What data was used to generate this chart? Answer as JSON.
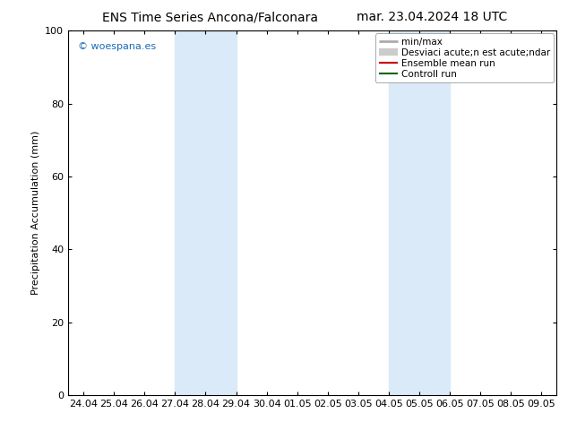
{
  "title_left": "ENS Time Series Ancona/Falconara",
  "title_right": "mar. 23.04.2024 18 UTC",
  "ylabel": "Precipitation Accumulation (mm)",
  "ylim": [
    0,
    100
  ],
  "yticks": [
    0,
    20,
    40,
    60,
    80,
    100
  ],
  "xtick_labels": [
    "24.04",
    "25.04",
    "26.04",
    "27.04",
    "28.04",
    "29.04",
    "30.04",
    "01.05",
    "02.05",
    "03.05",
    "04.05",
    "05.05",
    "06.05",
    "07.05",
    "08.05",
    "09.05"
  ],
  "shaded_regions": [
    {
      "xstart": 3,
      "xend": 5,
      "color": "#daeaf8"
    },
    {
      "xstart": 10,
      "xend": 12,
      "color": "#daeaf8"
    }
  ],
  "watermark": "© woespana.es",
  "watermark_color": "#1a6bb5",
  "legend_entries": [
    {
      "label": "min/max",
      "color": "#aaaaaa",
      "lw": 2.0,
      "style": "line"
    },
    {
      "label": "Desviaci acute;n est acute;ndar",
      "color": "#cccccc",
      "lw": 6.0,
      "style": "line"
    },
    {
      "label": "Ensemble mean run",
      "color": "#cc0000",
      "lw": 1.5,
      "style": "line"
    },
    {
      "label": "Controll run",
      "color": "#006600",
      "lw": 1.5,
      "style": "line"
    }
  ],
  "background_color": "#ffffff",
  "title_fontsize": 10,
  "axis_fontsize": 8,
  "tick_fontsize": 8,
  "legend_fontsize": 7.5
}
